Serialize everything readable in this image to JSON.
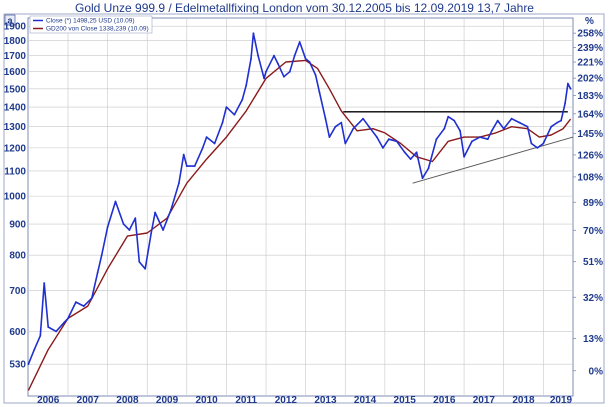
{
  "chart_data": {
    "type": "line",
    "title": "Gold Unze 999.9 / Edelmetallfixing London vom 30.12.2005 bis 12.09.2019 13,7 Jahre",
    "logo_text": "a",
    "percent_unit_label": "%",
    "y_scale": "log",
    "ylim": [
      470,
      1960
    ],
    "xlim": [
      2005.99,
      2019.75
    ],
    "grid": true,
    "legend_placement": "top-left",
    "colors": {
      "close": "#1f2fd0",
      "gd200": "#8b1a1a",
      "resistance": "#000000",
      "support": "#555555",
      "axis_text": "#1f3a8c",
      "grid": "#c8c8c8"
    },
    "y_ticks": [
      1900,
      1800,
      1700,
      1600,
      1500,
      1400,
      1300,
      1200,
      1100,
      1000,
      900,
      800,
      700,
      600,
      530
    ],
    "y_tick_labels": [
      "1900",
      "1800",
      "1700",
      "1600",
      "1500",
      "1400",
      "1300",
      "1200",
      "1100",
      "1000",
      "900",
      "800",
      "700",
      "600",
      "530"
    ],
    "pct_base": 517,
    "pct_ticks": [
      258,
      239,
      221,
      202,
      183,
      164,
      145,
      126,
      108,
      89,
      70,
      51,
      32,
      13,
      0
    ],
    "pct_tick_labels": [
      "258%",
      "239%",
      "221%",
      "202%",
      "183%",
      "164%",
      "145%",
      "126%",
      "108%",
      "89%",
      "70%",
      "51%",
      "32%",
      "13%",
      "0%"
    ],
    "x_ticks": [
      2006,
      2007,
      2008,
      2009,
      2010,
      2011,
      2012,
      2013,
      2014,
      2015,
      2016,
      2017,
      2018,
      2019
    ],
    "x_tick_labels": [
      "2006",
      "2007",
      "2008",
      "2009",
      "2010",
      "2011",
      "2012",
      "2013",
      "2014",
      "2015",
      "2016",
      "2017",
      "2018",
      "2019"
    ],
    "series": [
      {
        "name": "Close (*) 1498,25 USD (10.09)",
        "key": "close",
        "x": [
          2006.0,
          2006.15,
          2006.3,
          2006.4,
          2006.5,
          2006.7,
          2006.9,
          2007.0,
          2007.2,
          2007.4,
          2007.6,
          2007.75,
          2007.85,
          2008.0,
          2008.2,
          2008.4,
          2008.55,
          2008.7,
          2008.8,
          2008.95,
          2009.1,
          2009.2,
          2009.4,
          2009.6,
          2009.8,
          2009.92,
          2010.0,
          2010.2,
          2010.4,
          2010.5,
          2010.7,
          2010.9,
          2011.0,
          2011.2,
          2011.4,
          2011.5,
          2011.62,
          2011.68,
          2011.8,
          2011.95,
          2012.0,
          2012.2,
          2012.3,
          2012.45,
          2012.6,
          2012.72,
          2012.85,
          2013.0,
          2013.1,
          2013.25,
          2013.35,
          2013.5,
          2013.6,
          2013.75,
          2013.9,
          2014.0,
          2014.2,
          2014.45,
          2014.6,
          2014.8,
          2014.95,
          2015.1,
          2015.3,
          2015.5,
          2015.65,
          2015.8,
          2015.95,
          2016.1,
          2016.3,
          2016.5,
          2016.6,
          2016.75,
          2016.9,
          2017.0,
          2017.2,
          2017.4,
          2017.6,
          2017.7,
          2017.85,
          2018.0,
          2018.2,
          2018.4,
          2018.6,
          2018.7,
          2018.85,
          2019.0,
          2019.2,
          2019.35,
          2019.45,
          2019.55,
          2019.62,
          2019.69
        ],
        "values": [
          530,
          560,
          590,
          720,
          610,
          600,
          620,
          630,
          670,
          660,
          680,
          750,
          800,
          890,
          980,
          900,
          880,
          920,
          780,
          760,
          870,
          940,
          880,
          950,
          1050,
          1170,
          1120,
          1120,
          1200,
          1250,
          1220,
          1320,
          1400,
          1360,
          1440,
          1520,
          1680,
          1850,
          1700,
          1560,
          1600,
          1700,
          1650,
          1570,
          1600,
          1700,
          1790,
          1680,
          1660,
          1580,
          1480,
          1340,
          1250,
          1300,
          1320,
          1220,
          1290,
          1340,
          1300,
          1250,
          1200,
          1240,
          1230,
          1180,
          1150,
          1180,
          1070,
          1110,
          1240,
          1290,
          1350,
          1330,
          1280,
          1160,
          1230,
          1250,
          1240,
          1280,
          1330,
          1290,
          1340,
          1320,
          1300,
          1220,
          1200,
          1220,
          1300,
          1320,
          1330,
          1420,
          1530,
          1500
        ]
      },
      {
        "name": "GD200 von Close 1338,239 (10.09)",
        "key": "gd200",
        "x": [
          2006.0,
          2006.5,
          2007.0,
          2007.5,
          2008.0,
          2008.5,
          2009.0,
          2009.5,
          2010.0,
          2010.5,
          2011.0,
          2011.5,
          2012.0,
          2012.5,
          2013.0,
          2013.3,
          2013.6,
          2013.9,
          2014.3,
          2014.7,
          2015.0,
          2015.4,
          2015.8,
          2016.2,
          2016.6,
          2017.0,
          2017.4,
          2017.8,
          2018.2,
          2018.6,
          2018.9,
          2019.2,
          2019.5,
          2019.69
        ],
        "values": [
          480,
          560,
          630,
          660,
          760,
          860,
          870,
          920,
          1050,
          1150,
          1250,
          1380,
          1560,
          1660,
          1670,
          1620,
          1500,
          1380,
          1280,
          1290,
          1270,
          1220,
          1160,
          1140,
          1230,
          1250,
          1250,
          1270,
          1300,
          1290,
          1250,
          1260,
          1290,
          1338
        ]
      }
    ],
    "trendlines": [
      {
        "name": "resistance",
        "x": [
          2013.95,
          2019.62
        ],
        "values": [
          1375,
          1375
        ]
      },
      {
        "name": "support",
        "x": [
          2015.7,
          2019.75
        ],
        "values": [
          1050,
          1250
        ]
      }
    ]
  }
}
